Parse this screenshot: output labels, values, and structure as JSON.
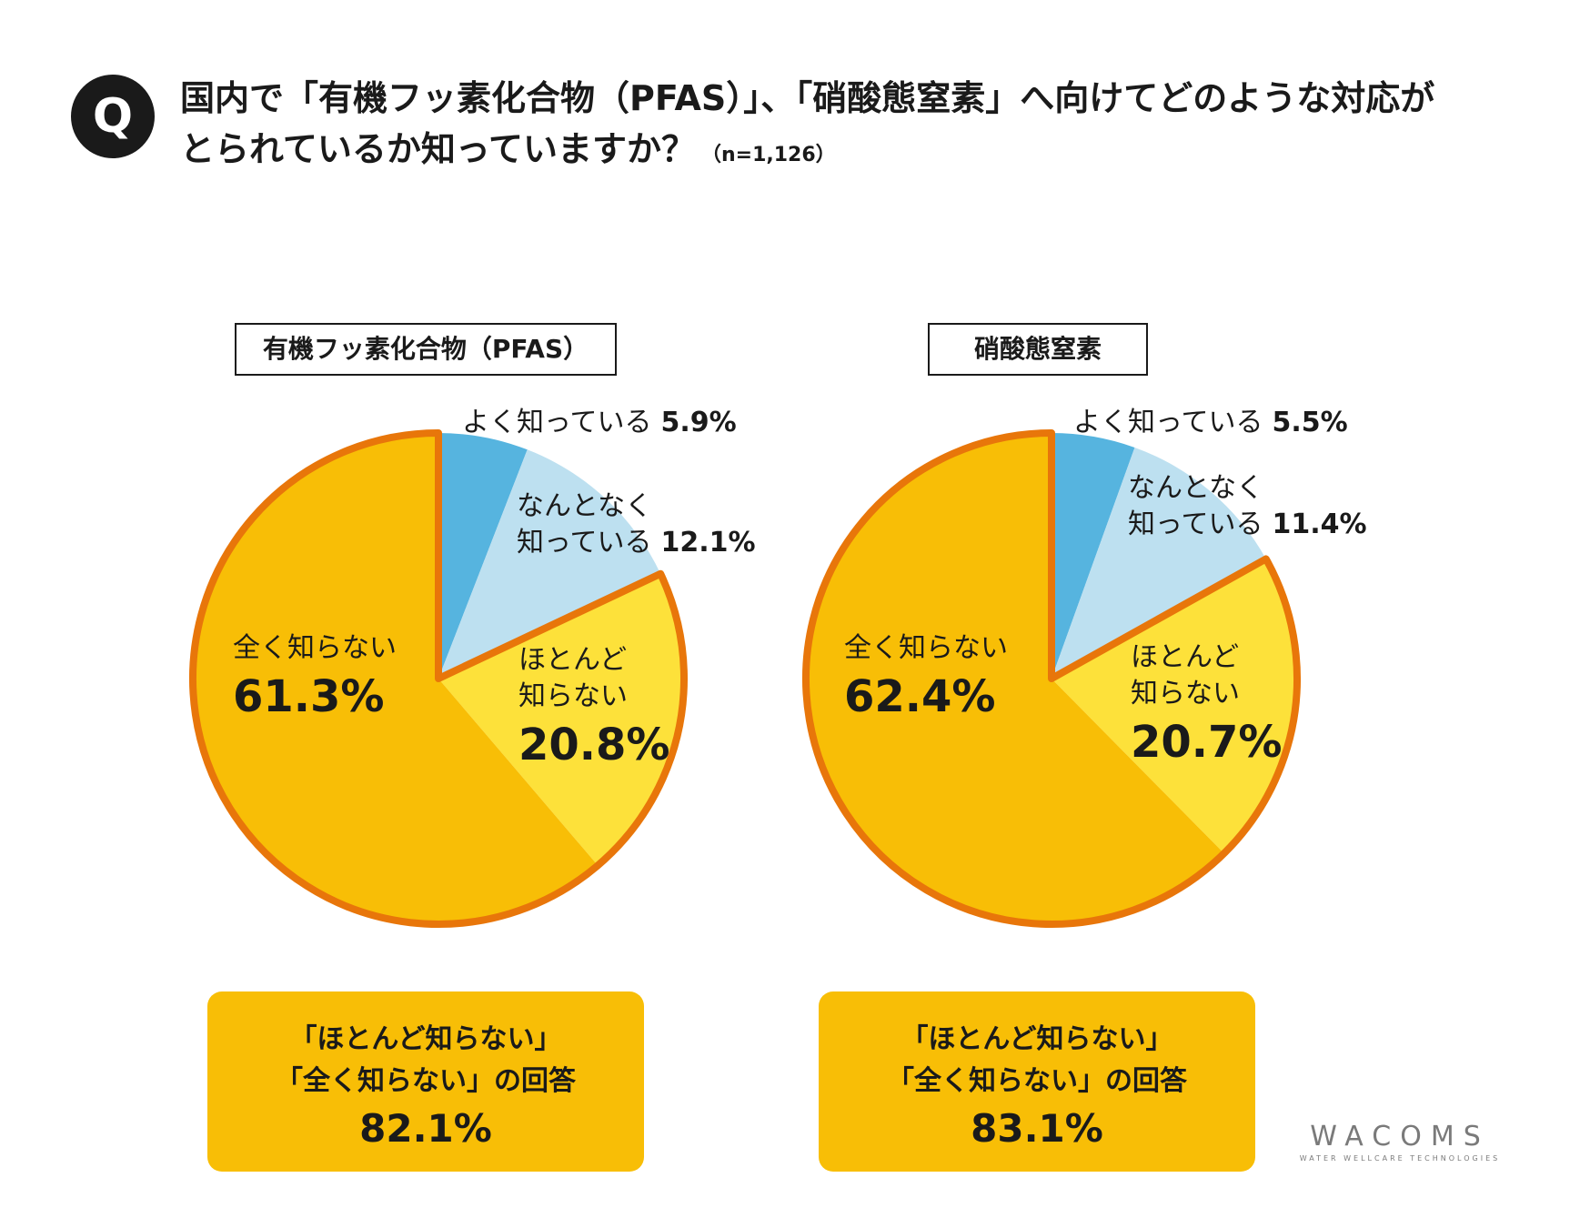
{
  "question": {
    "badge": "Q",
    "line1": "国内で「有機フッ素化合物（PFAS）」、「硝酸態窒素」へ向けてどのような対応が",
    "line2": "とられているか知っていますか？",
    "n": "（n=1,126）"
  },
  "chart_data": [
    {
      "type": "pie",
      "title": "有機フッ素化合物（PFAS）",
      "slices": [
        {
          "label": "よく知っている",
          "value": 5.9,
          "value_text": "5.9%",
          "color": "#56b4df"
        },
        {
          "label": "なんとなく知っている",
          "label_lines": [
            "なんとなく",
            "知っている"
          ],
          "value": 12.1,
          "value_text": "12.1%",
          "color": "#bde0f0"
        },
        {
          "label": "ほとんど知らない",
          "label_lines": [
            "ほとんど",
            "知らない"
          ],
          "value": 20.8,
          "value_text": "20.8%",
          "color": "#fde13a"
        },
        {
          "label": "全く知らない",
          "value": 61.3,
          "value_text": "61.3%",
          "color": "#f8be06"
        }
      ],
      "summary": {
        "line1": "「ほとんど知らない」",
        "line2": "「全く知らない」の回答",
        "value": "82.1%"
      }
    },
    {
      "type": "pie",
      "title": "硝酸態窒素",
      "slices": [
        {
          "label": "よく知っている",
          "value": 5.5,
          "value_text": "5.5%",
          "color": "#56b4df"
        },
        {
          "label": "なんとなく知っている",
          "label_lines": [
            "なんとなく",
            "知っている"
          ],
          "value": 11.4,
          "value_text": "11.4%",
          "color": "#bde0f0"
        },
        {
          "label": "ほとんど知らない",
          "label_lines": [
            "ほとんど",
            "知らない"
          ],
          "value": 20.7,
          "value_text": "20.7%",
          "color": "#fde13a"
        },
        {
          "label": "全く知らない",
          "value": 62.4,
          "value_text": "62.4%",
          "color": "#f8be06"
        }
      ],
      "summary": {
        "line1": "「ほとんど知らない」",
        "line2": "「全く知らない」の回答",
        "value": "83.1%"
      }
    }
  ],
  "colors": {
    "outline": "#e8760a",
    "text": "#1a1a1a"
  },
  "logo": {
    "name": "WACOMS",
    "tagline": "WATER WELLCARE TECHNOLOGIES"
  }
}
